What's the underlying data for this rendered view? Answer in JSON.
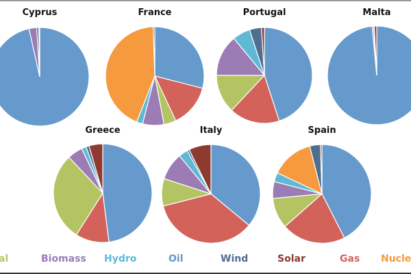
{
  "chart_data": {
    "type": "pie",
    "categories": [
      "Oil",
      "Gas",
      "Coal",
      "Biomass",
      "Hydro",
      "Nuclear",
      "Wind",
      "Solar"
    ],
    "colors": {
      "Oil": "#6699cc",
      "Gas": "#d2625a",
      "Coal": "#b5c462",
      "Biomass": "#9b7cb5",
      "Hydro": "#5fb8d4",
      "Nuclear": "#f59a3e",
      "Wind": "#4f6d8f",
      "Solar": "#8f3a30"
    },
    "legend_order": [
      "Coal",
      "Biomass",
      "Hydro",
      "Oil",
      "Wind",
      "Solar",
      "Gas",
      "Nuclear"
    ],
    "legend_placement": "bottom",
    "pies": [
      {
        "title": "Cyprus",
        "values": {
          "Oil": 96.5,
          "Gas": 0,
          "Coal": 0,
          "Biomass": 2.5,
          "Hydro": 0,
          "Nuclear": 0,
          "Wind": 0.7,
          "Solar": 0.3
        }
      },
      {
        "title": "France",
        "values": {
          "Oil": 29,
          "Gas": 14,
          "Coal": 4,
          "Biomass": 7,
          "Hydro": 2,
          "Nuclear": 43.5,
          "Wind": 0.5,
          "Solar": 0
        }
      },
      {
        "title": "Portugal",
        "values": {
          "Oil": 45,
          "Gas": 17,
          "Coal": 13,
          "Biomass": 14,
          "Hydro": 6,
          "Nuclear": 0,
          "Wind": 4,
          "Solar": 1
        }
      },
      {
        "title": "Malta",
        "values": {
          "Oil": 98.5,
          "Gas": 0,
          "Coal": 0,
          "Biomass": 0.5,
          "Hydro": 0,
          "Nuclear": 0,
          "Wind": 0.2,
          "Solar": 0.8
        }
      },
      {
        "title": "Greece",
        "values": {
          "Oil": 48,
          "Gas": 11,
          "Coal": 29,
          "Biomass": 5,
          "Hydro": 1.5,
          "Nuclear": 0,
          "Wind": 1,
          "Solar": 4.5
        }
      },
      {
        "title": "Italy",
        "values": {
          "Oil": 36,
          "Gas": 35,
          "Coal": 9,
          "Biomass": 9,
          "Hydro": 3,
          "Nuclear": 0,
          "Wind": 0.7,
          "Solar": 7.3
        }
      },
      {
        "title": "Spain",
        "values": {
          "Oil": 42.5,
          "Gas": 21,
          "Coal": 10,
          "Biomass": 5.5,
          "Hydro": 3,
          "Nuclear": 14,
          "Wind": 3.5,
          "Solar": 0.5
        }
      }
    ]
  }
}
